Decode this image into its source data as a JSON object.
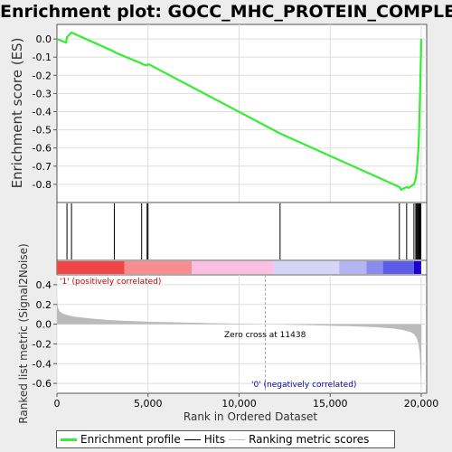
{
  "title": "Enrichment plot: GOCC_MHC_PROTEIN_COMPLEX",
  "colors": {
    "es_line": "#33ee33",
    "hits": "#000000",
    "ranking": "#bbbbbb",
    "zero_cross": "#aaaaaa",
    "pos_label": "#cc0000",
    "neg_label": "#0000cc"
  },
  "chart_data": [
    {
      "type": "line",
      "name": "enrichment-profile",
      "ylabel": "Enrichment score (ES)",
      "ylim": [
        -0.9,
        0.08
      ],
      "yticks": [
        0.0,
        -0.1,
        -0.2,
        -0.3,
        -0.4,
        -0.5,
        -0.6,
        -0.7,
        -0.8
      ],
      "ytick_labels": [
        "0.0",
        "-0.1",
        "-0.2",
        "-0.3",
        "-0.4",
        "-0.5",
        "-0.6",
        "-0.7",
        "-0.8"
      ],
      "xlim": [
        0,
        20300
      ],
      "grid": true,
      "x": [
        0,
        500,
        550,
        800,
        3150,
        3200,
        4650,
        4700,
        4950,
        5000,
        5050,
        12250,
        18800,
        18900,
        19200,
        19300,
        19600,
        19700,
        19750,
        19800,
        19850,
        19880,
        19900,
        19920,
        19940,
        19960,
        19980,
        20000
      ],
      "y": [
        0.0,
        -0.02,
        0.01,
        0.035,
        -0.07,
        -0.075,
        -0.135,
        -0.14,
        -0.145,
        -0.14,
        -0.14,
        -0.52,
        -0.815,
        -0.83,
        -0.815,
        -0.82,
        -0.8,
        -0.77,
        -0.73,
        -0.67,
        -0.6,
        -0.52,
        -0.45,
        -0.37,
        -0.29,
        -0.2,
        -0.1,
        0.0
      ]
    },
    {
      "type": "hits",
      "name": "hits",
      "positions": [
        550,
        800,
        3150,
        4650,
        4950,
        5000,
        12250,
        18800,
        19200,
        19600,
        19700,
        19750,
        19800,
        19850,
        19880,
        19900,
        19920,
        19940,
        19960,
        19980
      ]
    },
    {
      "type": "area",
      "name": "ranked-list-metric",
      "ylabel": "Ranked list metric (Signal2Noise)",
      "xlabel": "Rank in Ordered Dataset",
      "ylim": [
        -0.7,
        0.5
      ],
      "yticks": [
        0.4,
        0.2,
        0.0,
        -0.2,
        -0.4,
        -0.6
      ],
      "ytick_labels": [
        "0.4",
        "0.2",
        "0.0",
        "-0.2",
        "-0.4",
        "-0.6"
      ],
      "xlim": [
        0,
        20300
      ],
      "xticks": [
        0,
        5000,
        10000,
        15000,
        20000
      ],
      "xtick_labels": [
        "0",
        "5,000",
        "10,000",
        "15,000",
        "20,000"
      ],
      "x": [
        0,
        50,
        150,
        300,
        600,
        1000,
        2000,
        3000,
        5000,
        8000,
        11438,
        14000,
        16000,
        17500,
        18500,
        19000,
        19400,
        19600,
        19750,
        19850,
        19920,
        19960,
        19990,
        20000
      ],
      "y": [
        0.26,
        0.17,
        0.13,
        0.11,
        0.09,
        0.075,
        0.055,
        0.04,
        0.025,
        0.012,
        0.0,
        -0.01,
        -0.02,
        -0.03,
        -0.045,
        -0.06,
        -0.08,
        -0.1,
        -0.14,
        -0.2,
        -0.3,
        -0.45,
        -0.62,
        -0.65
      ],
      "zero_cross": 11438,
      "zero_cross_label": "Zero cross at 11438",
      "pos_label": "'1' (positively correlated)",
      "neg_label": "'0' (negatively correlated)"
    }
  ],
  "colorbar": [
    {
      "to": 3700,
      "color": "#f14646"
    },
    {
      "to": 7400,
      "color": "#f98c8c"
    },
    {
      "to": 11900,
      "color": "#fbbfe1"
    },
    {
      "to": 15500,
      "color": "#d5d5f7"
    },
    {
      "to": 17000,
      "color": "#b4b4f3"
    },
    {
      "to": 17900,
      "color": "#8a8aec"
    },
    {
      "to": 19600,
      "color": "#5c5ce6"
    },
    {
      "to": 20000,
      "color": "#1a00cc"
    }
  ],
  "legend": {
    "es": "Enrichment profile",
    "hits": "Hits",
    "ranking": "Ranking metric scores"
  }
}
